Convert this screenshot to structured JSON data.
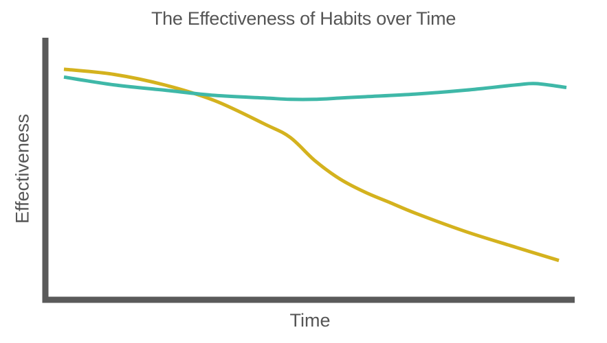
{
  "chart_data": {
    "type": "line",
    "title": "The Effectiveness of Habits over Time",
    "xlabel": "Time",
    "ylabel": "Effectiveness",
    "x_ticks_shown": false,
    "y_ticks_shown": false,
    "grid": false,
    "legend": "none",
    "xlim": [
      0,
      100
    ],
    "ylim": [
      0,
      100
    ],
    "axis_color": "#5a5a5a",
    "series": [
      {
        "color": "#d4b21e",
        "x": [
          0,
          10,
          20,
          30,
          40,
          45,
          50,
          55,
          60,
          65,
          70,
          80,
          90,
          98.5
        ],
        "y": [
          88,
          86,
          82,
          76,
          67,
          62,
          53,
          46,
          41,
          37,
          33,
          26,
          20,
          15
        ]
      },
      {
        "color": "#3fb8a8",
        "x": [
          0,
          10,
          20,
          30,
          40,
          45,
          50,
          55,
          60,
          70,
          80,
          90,
          94,
          100
        ],
        "y": [
          85,
          82,
          80,
          78,
          77,
          76.5,
          76.5,
          77,
          77.5,
          78.5,
          80,
          82,
          82.5,
          81
        ]
      }
    ]
  }
}
